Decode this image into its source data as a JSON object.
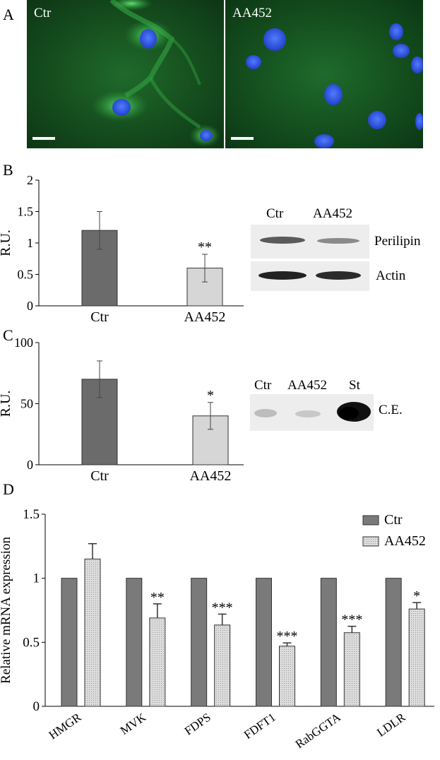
{
  "panels": {
    "a": {
      "letter": "A",
      "left_label": "Ctr",
      "right_label": "AA452"
    },
    "b": {
      "letter": "B",
      "blot": {
        "col1": "Ctr",
        "col2": "AA452",
        "row1": "Perilipin",
        "row2": "Actin"
      }
    },
    "c": {
      "letter": "C",
      "blot": {
        "col1": "Ctr",
        "col2": "AA452",
        "col3": "St",
        "row1": "C.E."
      }
    },
    "d": {
      "letter": "D"
    }
  },
  "colors": {
    "ctr_bar": "#6b6b6b",
    "aa452_bar": "#d6d6d6",
    "ctr_bar_d": "#7a7a7a",
    "aa452_bar_d": "#dcdcdc",
    "fluorescence_bg": "#0e3a17",
    "cell_green": "#38c84a",
    "nucleus_blue": "#2b55f0"
  },
  "chart_data": [
    {
      "panel": "B",
      "type": "bar",
      "categories": [
        "Ctr",
        "AA452"
      ],
      "values": [
        1.2,
        0.6
      ],
      "errors": [
        0.3,
        0.22
      ],
      "significance": [
        "",
        "**"
      ],
      "ylabel": "R.U.",
      "ylim": [
        0,
        2
      ],
      "yticks": [
        0,
        0.5,
        1,
        1.5,
        2
      ],
      "yticklabels": [
        "0",
        "0.5",
        "1",
        "1.5",
        "2"
      ]
    },
    {
      "panel": "C",
      "type": "bar",
      "categories": [
        "Ctr",
        "AA452"
      ],
      "values": [
        70,
        40
      ],
      "errors": [
        15,
        11
      ],
      "significance": [
        "",
        "*"
      ],
      "ylabel": "R.U.",
      "ylim": [
        0,
        100
      ],
      "yticks": [
        0,
        50,
        100
      ],
      "yticklabels": [
        "0",
        "50",
        "100"
      ]
    },
    {
      "panel": "D",
      "type": "bar",
      "categories": [
        "HMGR",
        "MVK",
        "FDPS",
        "FDFT1",
        "RabGGTA",
        "LDLR"
      ],
      "series": [
        {
          "name": "Ctr",
          "values": [
            1,
            1,
            1,
            1,
            1,
            1
          ],
          "errors": [
            0,
            0,
            0,
            0,
            0,
            0
          ]
        },
        {
          "name": "AA452",
          "values": [
            1.15,
            0.69,
            0.635,
            0.47,
            0.575,
            0.76
          ],
          "errors": [
            0.12,
            0.11,
            0.085,
            0.025,
            0.05,
            0.05
          ]
        }
      ],
      "significance": [
        "",
        "**",
        "***",
        "***",
        "***",
        "*"
      ],
      "ylabel": "Relative mRNA expression",
      "ylim": [
        0,
        1.5
      ],
      "yticks": [
        0,
        0.5,
        1,
        1.5
      ],
      "yticklabels": [
        "0",
        "0.5",
        "1",
        "1.5"
      ],
      "legend": "top-right"
    }
  ]
}
